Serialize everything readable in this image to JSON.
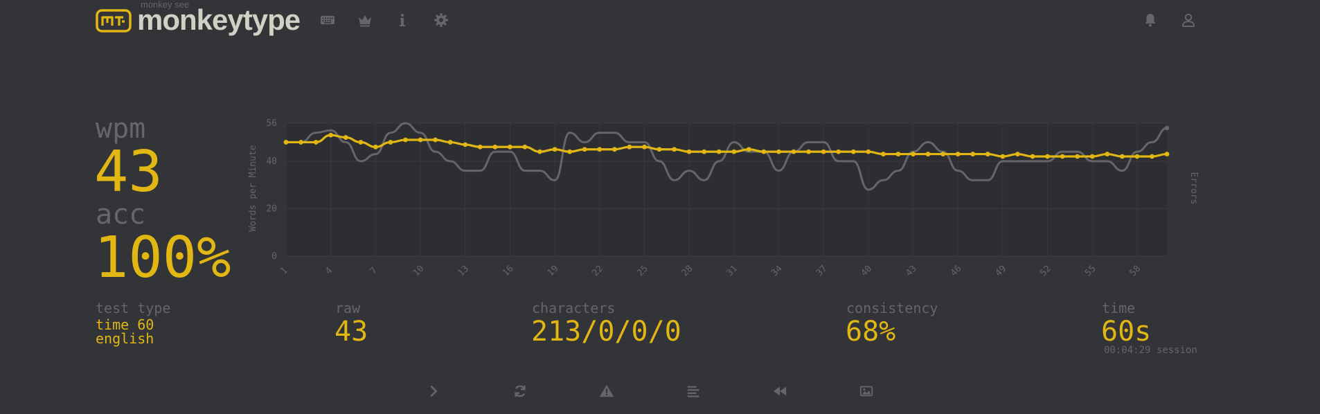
{
  "header": {
    "logo_small": "monkey see",
    "logo_text": "monkeytype",
    "logo_icon_text": "m-t:",
    "nav_icons": [
      "keyboard-icon",
      "crown-icon",
      "info-icon",
      "gear-icon"
    ],
    "right_icons": [
      "bell-icon",
      "user-icon"
    ]
  },
  "stats": {
    "wpm_label": "wpm",
    "wpm_value": "43",
    "acc_label": "acc",
    "acc_value": "100%",
    "test_type_label": "test type",
    "test_type_line1": "time 60",
    "test_type_line2": "english",
    "raw_label": "raw",
    "raw_value": "43",
    "characters_label": "characters",
    "characters_value": "213/0/0/0",
    "consistency_label": "consistency",
    "consistency_value": "68%",
    "time_label": "time",
    "time_value": "60s",
    "session_value": "00:04:29 session"
  },
  "chart_data": {
    "type": "line",
    "ylabel": "Words per Minute",
    "y2label": "Errors",
    "ylim": [
      0,
      56
    ],
    "yticks": [
      0,
      20,
      40,
      56
    ],
    "x": [
      1,
      2,
      3,
      4,
      5,
      6,
      7,
      8,
      9,
      10,
      11,
      12,
      13,
      14,
      15,
      16,
      17,
      18,
      19,
      20,
      21,
      22,
      23,
      24,
      25,
      26,
      27,
      28,
      29,
      30,
      31,
      32,
      33,
      34,
      35,
      36,
      37,
      38,
      39,
      40,
      41,
      42,
      43,
      44,
      45,
      46,
      47,
      48,
      49,
      50,
      51,
      52,
      53,
      54,
      55,
      56,
      57,
      58,
      59,
      60
    ],
    "xticks": [
      "1",
      "4",
      "7",
      "10",
      "13",
      "16",
      "19",
      "22",
      "25",
      "28",
      "31",
      "34",
      "37",
      "40",
      "43",
      "46",
      "49",
      "52",
      "55",
      "58"
    ],
    "grid": true,
    "series": [
      {
        "color": "#e2b714",
        "values": [
          48,
          48,
          48,
          51,
          50,
          48,
          46,
          48,
          49,
          49,
          49,
          48,
          47,
          46,
          46,
          46,
          46,
          44,
          45,
          44,
          45,
          45,
          45,
          46,
          46,
          45,
          45,
          44,
          44,
          44,
          44,
          45,
          44,
          44,
          44,
          44,
          44,
          44,
          44,
          44,
          43,
          43,
          43,
          43,
          43,
          43,
          43,
          43,
          42,
          43,
          42,
          42,
          42,
          42,
          42,
          43,
          42,
          42,
          42,
          43
        ]
      },
      {
        "color": "#646669",
        "values": [
          48,
          48,
          52,
          53,
          48,
          40,
          43,
          52,
          56,
          52,
          44,
          40,
          36,
          36,
          44,
          44,
          36,
          36,
          32,
          52,
          48,
          52,
          52,
          48,
          48,
          40,
          32,
          36,
          32,
          40,
          48,
          44,
          44,
          36,
          44,
          48,
          48,
          40,
          40,
          28,
          32,
          36,
          44,
          48,
          44,
          36,
          32,
          32,
          40,
          40,
          40,
          40,
          44,
          44,
          40,
          40,
          36,
          44,
          48,
          54
        ]
      }
    ]
  },
  "bottom": {
    "buttons": [
      "next-test-icon",
      "restart-icon",
      "report-icon",
      "words-history-icon",
      "replay-icon",
      "screenshot-icon"
    ]
  },
  "colors": {
    "background": "#323437",
    "accent": "#e2b714",
    "sub": "#646669",
    "text": "#d1d0c5"
  }
}
